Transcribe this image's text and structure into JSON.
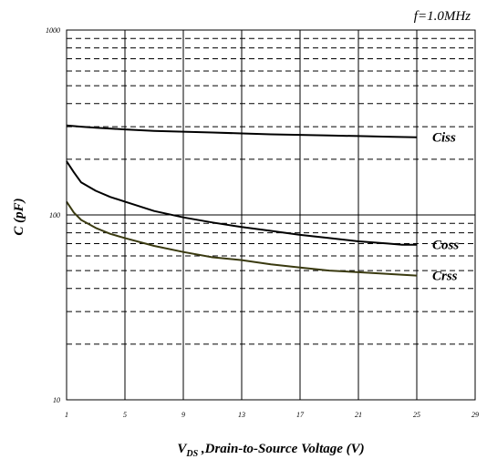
{
  "chart_data": {
    "type": "line",
    "annotation": "f=1.0MHz",
    "xlabel": "V",
    "xlabel_sub": "DS",
    "xlabel_rest": " ,Drain-to-Source Voltage (V)",
    "ylabel": "C (pF)",
    "y_scale": "log",
    "xlim": [
      1,
      29
    ],
    "ylim": [
      10,
      1000
    ],
    "x_ticks": [
      1,
      5,
      9,
      13,
      17,
      21,
      25,
      29
    ],
    "x_tick_labels": [
      "1",
      "5",
      "9",
      "13",
      "17",
      "21",
      "25",
      "29"
    ],
    "y_tick_values": [
      10,
      100,
      1000
    ],
    "y_tick_labels": [
      "10",
      "100",
      "1000"
    ],
    "grid": true,
    "series": [
      {
        "name": "Ciss",
        "color": "#000000",
        "x": [
          1,
          2,
          3,
          5,
          7,
          9,
          11,
          13,
          15,
          17,
          19,
          21,
          23,
          25
        ],
        "y": [
          305,
          300,
          296,
          290,
          285,
          282,
          279,
          276,
          273,
          271,
          269,
          267,
          265,
          263
        ]
      },
      {
        "name": "Coss",
        "color": "#000000",
        "x": [
          1,
          1.5,
          2,
          3,
          4,
          5,
          7,
          9,
          11,
          13,
          15,
          17,
          19,
          21,
          23,
          24,
          25
        ],
        "y": [
          195,
          170,
          150,
          135,
          125,
          118,
          105,
          97,
          91,
          86,
          82,
          78,
          75,
          72,
          70,
          69,
          69
        ]
      },
      {
        "name": "Crss",
        "color": "#3a3a10",
        "x": [
          1,
          1.5,
          2,
          3,
          4,
          5,
          7,
          9,
          11,
          13,
          15,
          17,
          19,
          21,
          23,
          25
        ],
        "y": [
          118,
          103,
          94,
          85,
          79,
          75,
          68,
          63,
          59,
          57,
          54,
          52,
          50,
          49,
          48,
          47
        ]
      }
    ]
  }
}
